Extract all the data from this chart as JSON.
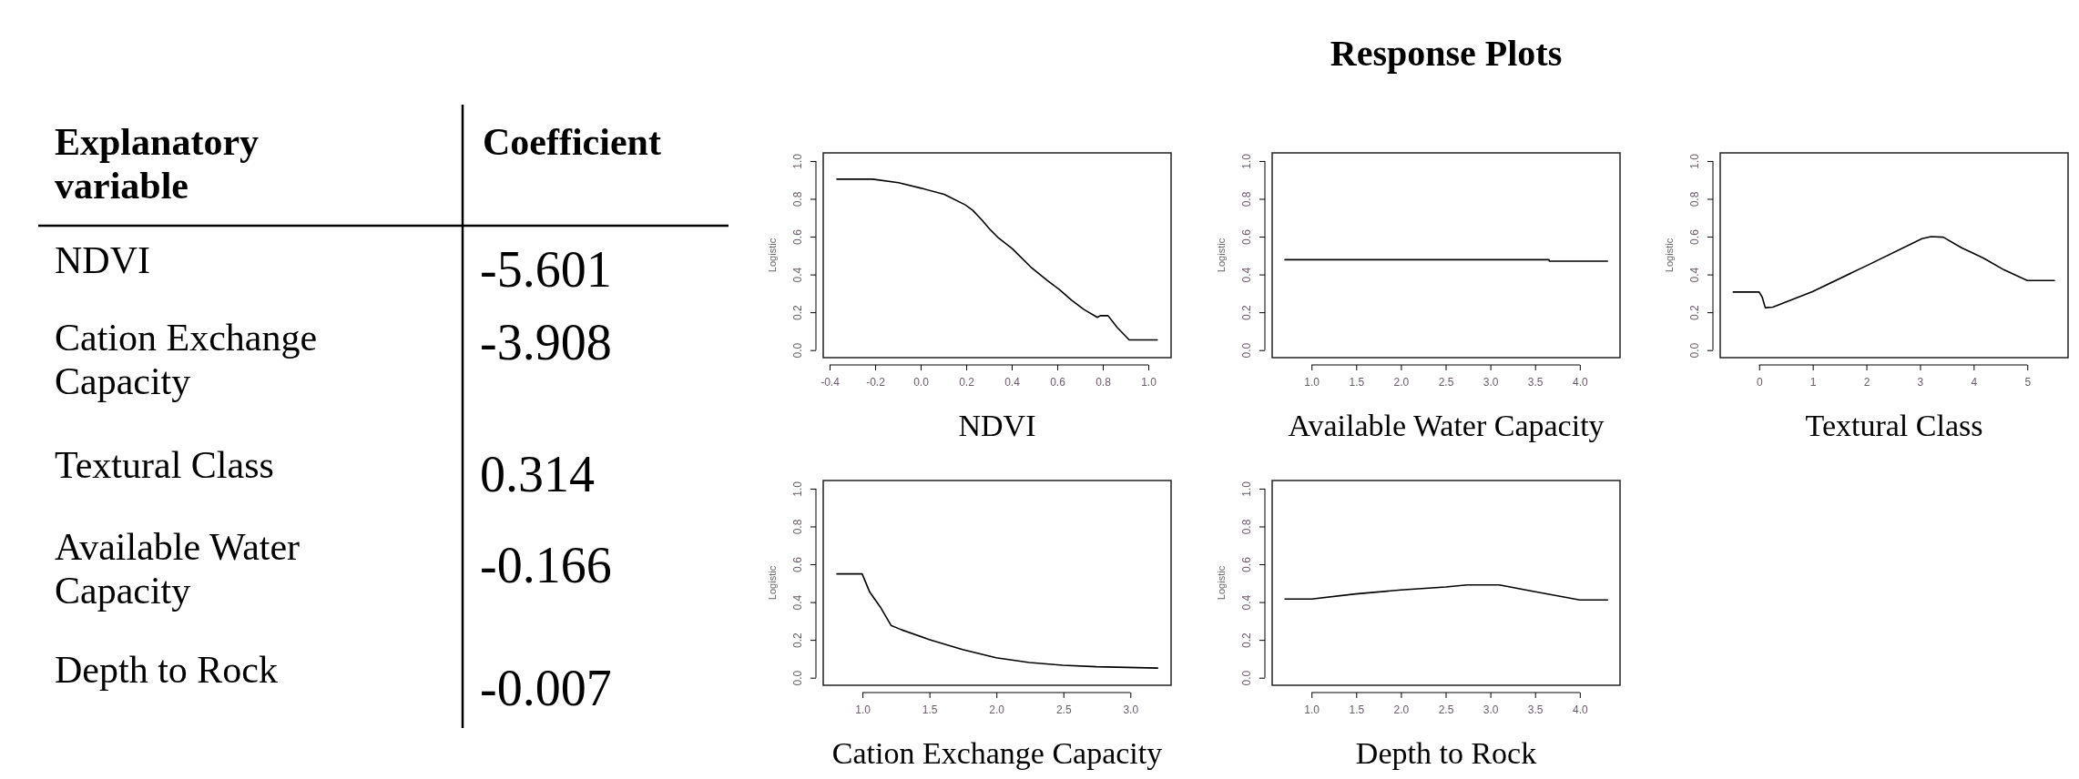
{
  "chart_data": [
    {
      "type": "other",
      "xlabel": "Explanatory variable",
      "ylabel": "Coefficient",
      "categories": [
        "NDVI",
        "Cation Exchange Capacity",
        "Textural Class",
        "Available Water Capacity",
        "Depth to Rock"
      ],
      "values": [
        -5.601,
        -3.908,
        0.314,
        -0.166,
        -0.007
      ],
      "data_labels": true
    },
    {
      "type": "line",
      "xlabel": "NDVI",
      "ylabel": "Logistic",
      "xlim": [
        -0.428,
        1.1
      ],
      "ylim": [
        -0.04,
        1.043
      ],
      "xticks": [
        {
          "value": -0.4,
          "label": "-0.4"
        },
        {
          "value": -0.2,
          "label": "-0.2"
        },
        {
          "value": 0,
          "label": "0.0"
        },
        {
          "value": 0.2,
          "label": "0.2"
        },
        {
          "value": 0.4,
          "label": "0.4"
        },
        {
          "value": 0.6,
          "label": "0.6"
        },
        {
          "value": 0.8,
          "label": "0.8"
        },
        {
          "value": 1,
          "label": "1.0"
        }
      ],
      "yticks": [
        {
          "value": 0,
          "label": "0.0"
        },
        {
          "value": 0.2,
          "label": "0.2"
        },
        {
          "value": 0.4,
          "label": "0.4"
        },
        {
          "value": 0.6,
          "label": "0.6"
        },
        {
          "value": 0.8,
          "label": "0.8"
        },
        {
          "value": 1,
          "label": "1.0"
        }
      ],
      "series": [
        {
          "color": "#000000",
          "x": [
            -0.368,
            -0.211,
            -0.097,
            0.003,
            0.103,
            0.196,
            0.229,
            0.269,
            0.303,
            0.343,
            0.403,
            0.483,
            0.556,
            0.609,
            0.663,
            0.716,
            0.776,
            0.789,
            0.823,
            0.863,
            0.916,
            1.039
          ],
          "values": [
            0.904,
            0.904,
            0.885,
            0.856,
            0.824,
            0.768,
            0.739,
            0.688,
            0.64,
            0.592,
            0.536,
            0.44,
            0.368,
            0.32,
            0.264,
            0.216,
            0.173,
            0.182,
            0.182,
            0.12,
            0.054,
            0.054
          ]
        }
      ]
    },
    {
      "type": "line",
      "title": "Response Plots",
      "xlabel": "Available Water Capacity",
      "ylabel": "Logistic",
      "xlim": [
        0.56,
        4.45
      ],
      "ylim": [
        -0.04,
        1.043
      ],
      "xticks": [
        {
          "value": 1,
          "label": "1.0"
        },
        1.5,
        {
          "value": 2,
          "label": "2.0"
        },
        2.5,
        {
          "value": 3,
          "label": "3.0"
        },
        3.5,
        {
          "value": 4,
          "label": "4.0"
        }
      ],
      "yticks": [
        {
          "value": 0,
          "label": "0.0"
        },
        {
          "value": 0.2,
          "label": "0.2"
        },
        {
          "value": 0.4,
          "label": "0.4"
        },
        {
          "value": 0.6,
          "label": "0.6"
        },
        {
          "value": 0.8,
          "label": "0.8"
        },
        {
          "value": 1,
          "label": "1.0"
        }
      ],
      "series": [
        {
          "color": "#000000",
          "x": [
            0.703,
            3.656,
            3.66,
            4.31
          ],
          "values": [
            0.478,
            0.478,
            0.47,
            0.47
          ]
        }
      ]
    },
    {
      "type": "line",
      "xlabel": "Textural Class",
      "ylabel": "Logistic",
      "xlim": [
        -0.726,
        5.76
      ],
      "ylim": [
        -0.04,
        1.043
      ],
      "xticks": [
        0,
        1,
        2,
        3,
        4,
        5
      ],
      "yticks": [
        {
          "value": 0,
          "label": "0.0"
        },
        {
          "value": 0.2,
          "label": "0.2"
        },
        {
          "value": 0.4,
          "label": "0.4"
        },
        {
          "value": 0.6,
          "label": "0.6"
        },
        {
          "value": 0.8,
          "label": "0.8"
        },
        {
          "value": 1,
          "label": "1.0"
        }
      ],
      "series": [
        {
          "color": "#000000",
          "x": [
            -0.482,
            0,
            0.057,
            0.114,
            0.255,
            0.993,
            2.015,
            3.036,
            3.206,
            3.433,
            3.774,
            4.171,
            4.568,
            5,
            5.505
          ],
          "values": [
            0.307,
            0.307,
            0.28,
            0.224,
            0.227,
            0.309,
            0.448,
            0.589,
            0.6,
            0.597,
            0.541,
            0.488,
            0.424,
            0.368,
            0.368
          ]
        }
      ]
    },
    {
      "type": "line",
      "xlabel": "Cation Exchange Capacity",
      "ylabel": "Logistic",
      "xlim": [
        0.707,
        3.304
      ],
      "ylim": [
        -0.04,
        1.043
      ],
      "xticks": [
        {
          "value": 1,
          "label": "1.0"
        },
        1.5,
        {
          "value": 2,
          "label": "2.0"
        },
        2.5,
        {
          "value": 3,
          "label": "3.0"
        }
      ],
      "yticks": [
        {
          "value": 0,
          "label": "0.0"
        },
        {
          "value": 0.2,
          "label": "0.2"
        },
        {
          "value": 0.4,
          "label": "0.4"
        },
        {
          "value": 0.6,
          "label": "0.6"
        },
        {
          "value": 0.8,
          "label": "0.8"
        },
        {
          "value": 1,
          "label": "1.0"
        }
      ],
      "series": [
        {
          "color": "#000000",
          "x": [
            0.809,
            0.998,
            1.054,
            1.134,
            1.213,
            1.293,
            1.497,
            1.747,
            1.997,
            2.246,
            2.496,
            2.746,
            3.204
          ],
          "values": [
            0.549,
            0.549,
            0.453,
            0.373,
            0.277,
            0.253,
            0.202,
            0.149,
            0.106,
            0.08,
            0.066,
            0.058,
            0.051
          ]
        }
      ]
    },
    {
      "type": "line",
      "xlabel": "Depth to Rock",
      "ylabel": "Logistic",
      "xlim": [
        0.56,
        4.45
      ],
      "ylim": [
        -0.04,
        1.043
      ],
      "xticks": [
        {
          "value": 1,
          "label": "1.0"
        },
        1.5,
        {
          "value": 2,
          "label": "2.0"
        },
        2.5,
        {
          "value": 3,
          "label": "3.0"
        },
        3.5,
        {
          "value": 4,
          "label": "4.0"
        }
      ],
      "yticks": [
        {
          "value": 0,
          "label": "0.0"
        },
        {
          "value": 0.2,
          "label": "0.2"
        },
        {
          "value": 0.4,
          "label": "0.4"
        },
        {
          "value": 0.6,
          "label": "0.6"
        },
        {
          "value": 0.8,
          "label": "0.8"
        },
        {
          "value": 1,
          "label": "1.0"
        }
      ],
      "series": [
        {
          "color": "#000000",
          "x": [
            0.704,
            1,
            1.494,
            2,
            2.5,
            2.74,
            3.1,
            3.49,
            4,
            4.31
          ],
          "values": [
            0.416,
            0.416,
            0.443,
            0.464,
            0.48,
            0.491,
            0.491,
            0.456,
            0.411,
            0.411
          ]
        }
      ]
    }
  ]
}
